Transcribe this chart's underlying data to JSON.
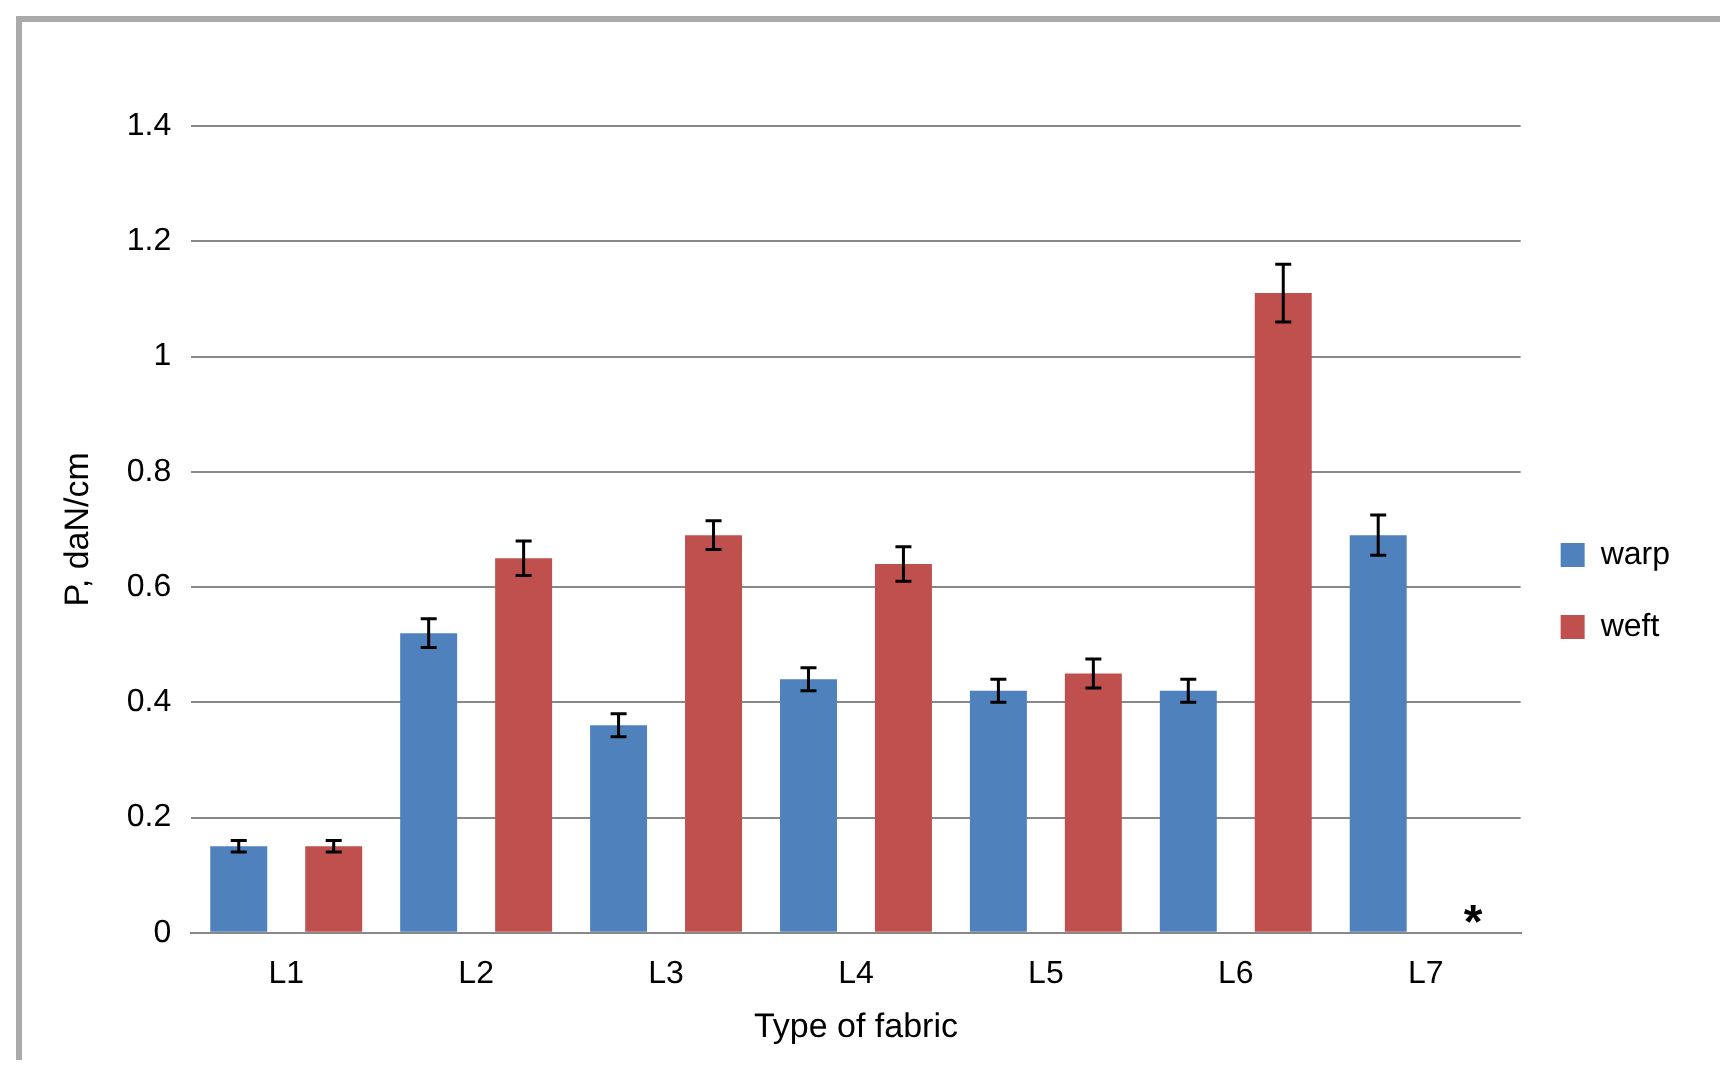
{
  "chart_data": {
    "type": "bar",
    "xlabel": "Type of fabric",
    "ylabel": "P, daN/cm",
    "categories": [
      "L1",
      "L2",
      "L3",
      "L4",
      "L5",
      "L6",
      "L7"
    ],
    "series": [
      {
        "name": "warp",
        "color": "#4f81bd",
        "values": [
          0.15,
          0.52,
          0.36,
          0.44,
          0.42,
          0.42,
          0.69
        ],
        "errors": [
          0.01,
          0.025,
          0.02,
          0.02,
          0.02,
          0.02,
          0.035
        ]
      },
      {
        "name": "weft",
        "color": "#c0504d",
        "values": [
          0.15,
          0.65,
          0.69,
          0.64,
          0.45,
          1.11,
          null
        ],
        "errors": [
          0.01,
          0.03,
          0.025,
          0.03,
          0.025,
          0.05,
          null
        ]
      }
    ],
    "ylim": [
      0,
      1.4
    ],
    "yticks": [
      0,
      0.2,
      0.4,
      0.6,
      0.8,
      1,
      1.2,
      1.4
    ],
    "grid": "y",
    "legend": "right",
    "annotations": [
      "*"
    ]
  }
}
